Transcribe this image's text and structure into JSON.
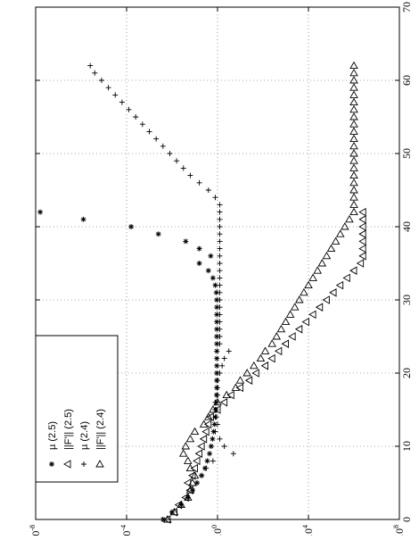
{
  "chart_data": {
    "type": "scatter",
    "orientation": "rotated-90-counterclockwise",
    "x_axis": {
      "range": [
        0,
        70
      ],
      "ticks": [
        0,
        10,
        20,
        30,
        40,
        50,
        60,
        70
      ],
      "tick_labels": [
        "0",
        "10",
        "20",
        "30",
        "40",
        "50",
        "60",
        "70"
      ],
      "label": ""
    },
    "y_axis": {
      "scale": "log10",
      "range_exponent": [
        -8,
        8
      ],
      "ticks_exponent": [
        -8,
        -4,
        0,
        4,
        8
      ],
      "tick_labels": [
        {
          "base": "10",
          "exp": "8"
        },
        {
          "base": "10",
          "exp": "4"
        },
        {
          "base": "10",
          "exp": "0"
        },
        {
          "base": "10",
          "exp": "-4"
        },
        {
          "base": "10",
          "exp": "-8"
        }
      ],
      "label": ""
    },
    "grid": true,
    "legend_position": "top-left (rotated)",
    "legend": [
      {
        "marker": "star",
        "label": "µ (2.5)"
      },
      {
        "marker": "triangle-up",
        "label": "||F'|| (2.5)"
      },
      {
        "marker": "plus",
        "label": "µ (2.4)"
      },
      {
        "marker": "triangle-right",
        "label": "||F'|| (2.4)"
      }
    ],
    "series": [
      {
        "name": "µ (2.5)",
        "marker": "star",
        "x": [
          0,
          1,
          2,
          3,
          4,
          5,
          6,
          7,
          8,
          9,
          10,
          11,
          12,
          13,
          14,
          15,
          16,
          17,
          18,
          19,
          20,
          21,
          22,
          23,
          24,
          25,
          26,
          27,
          28,
          29,
          30,
          31,
          32,
          33,
          34,
          35,
          36,
          37,
          38,
          39,
          40,
          41,
          42
        ],
        "y_exp": [
          2.4,
          2.0,
          1.6,
          1.3,
          1.1,
          0.9,
          0.7,
          0.55,
          0.45,
          0.35,
          0.28,
          0.22,
          0.17,
          0.13,
          0.1,
          0.07,
          0.05,
          0.04,
          0.03,
          0.03,
          0.03,
          0.03,
          0.03,
          0.03,
          0.03,
          0.03,
          0.03,
          0.03,
          0.03,
          0.03,
          0.03,
          0.05,
          0.1,
          0.2,
          0.4,
          0.8,
          0.3,
          0.8,
          1.4,
          2.6,
          3.8,
          5.9,
          7.8
        ]
      },
      {
        "name": "||F'|| (2.5)",
        "marker": "triangle-up",
        "x": [
          0,
          1,
          2,
          3,
          4,
          5,
          6,
          7,
          8,
          9,
          10,
          11,
          12,
          13,
          14,
          15,
          16,
          17,
          18,
          19,
          20,
          21,
          22,
          23,
          24,
          25,
          26,
          27,
          28,
          29,
          30,
          31,
          32,
          33,
          34,
          35,
          36,
          37,
          38,
          39,
          40,
          41,
          42
        ],
        "y_exp": [
          2.2,
          1.9,
          1.7,
          1.4,
          1.2,
          1.3,
          1.1,
          1.0,
          0.9,
          0.8,
          0.7,
          0.6,
          0.5,
          0.4,
          0.3,
          0.0,
          -0.3,
          -0.6,
          -1.0,
          -1.4,
          -1.7,
          -2.1,
          -2.4,
          -2.7,
          -3.0,
          -3.3,
          -3.6,
          -3.9,
          -4.2,
          -4.5,
          -4.8,
          -5.1,
          -5.4,
          -5.7,
          -6.0,
          -6.3,
          -6.4,
          -6.4,
          -6.4,
          -6.4,
          -6.4,
          -6.4,
          -6.4
        ]
      },
      {
        "name": "µ (2.4)",
        "marker": "plus",
        "x": [
          0,
          1,
          2,
          3,
          4,
          5,
          6,
          7,
          8,
          9,
          10,
          11,
          12,
          13,
          14,
          15,
          16,
          17,
          18,
          19,
          20,
          21,
          22,
          23,
          24,
          25,
          26,
          27,
          28,
          29,
          30,
          31,
          32,
          33,
          34,
          35,
          36,
          37,
          38,
          39,
          40,
          41,
          42,
          43,
          44,
          45,
          46,
          47,
          48,
          49,
          50,
          51,
          52,
          53,
          54,
          55,
          56,
          57,
          58,
          59,
          60,
          61,
          62
        ],
        "y_exp": [
          2.4,
          2.0,
          1.6,
          1.3,
          1.1,
          0.9,
          0.7,
          0.5,
          0.2,
          -0.7,
          -0.3,
          -0.1,
          0.1,
          0.0,
          0.05,
          0.1,
          0.1,
          0.0,
          0.0,
          0.0,
          -0.1,
          -0.2,
          -0.3,
          -0.5,
          -0.1,
          -0.1,
          -0.1,
          -0.1,
          -0.1,
          -0.1,
          -0.1,
          -0.1,
          -0.1,
          -0.1,
          -0.1,
          -0.1,
          -0.1,
          -0.1,
          -0.1,
          -0.1,
          -0.1,
          -0.1,
          -0.1,
          -0.1,
          0.1,
          0.4,
          0.8,
          1.2,
          1.5,
          1.8,
          2.1,
          2.4,
          2.7,
          3.0,
          3.3,
          3.6,
          3.9,
          4.2,
          4.5,
          4.8,
          5.1,
          5.4,
          5.6
        ]
      },
      {
        "name": "||F'|| (2.4)",
        "marker": "triangle-right",
        "x": [
          0,
          1,
          2,
          3,
          4,
          5,
          6,
          7,
          8,
          9,
          10,
          11,
          12,
          13,
          14,
          15,
          16,
          17,
          18,
          19,
          20,
          21,
          22,
          23,
          24,
          25,
          26,
          27,
          28,
          29,
          30,
          31,
          32,
          33,
          34,
          35,
          36,
          37,
          38,
          39,
          40,
          41,
          42,
          43,
          44,
          45,
          46,
          47,
          48,
          49,
          50,
          51,
          52,
          53,
          54,
          55,
          56,
          57,
          58,
          59,
          60,
          61,
          62
        ],
        "y_exp": [
          2.2,
          1.9,
          1.6,
          1.3,
          1.2,
          1.1,
          1.0,
          1.2,
          1.3,
          1.5,
          1.4,
          1.2,
          1.0,
          0.6,
          0.4,
          0.2,
          0.0,
          -0.4,
          -0.8,
          -1.0,
          -1.3,
          -1.6,
          -1.9,
          -2.1,
          -2.4,
          -2.6,
          -2.8,
          -3.0,
          -3.2,
          -3.4,
          -3.6,
          -3.8,
          -4.0,
          -4.2,
          -4.4,
          -4.6,
          -4.8,
          -5.0,
          -5.2,
          -5.4,
          -5.6,
          -5.8,
          -6.0,
          -6.0,
          -6.0,
          -6.0,
          -6.0,
          -6.0,
          -6.0,
          -6.0,
          -6.0,
          -6.0,
          -6.0,
          -6.0,
          -6.0,
          -6.0,
          -6.0,
          -6.0,
          -6.0,
          -6.0,
          -6.0,
          -6.0,
          -6.0
        ]
      }
    ]
  }
}
